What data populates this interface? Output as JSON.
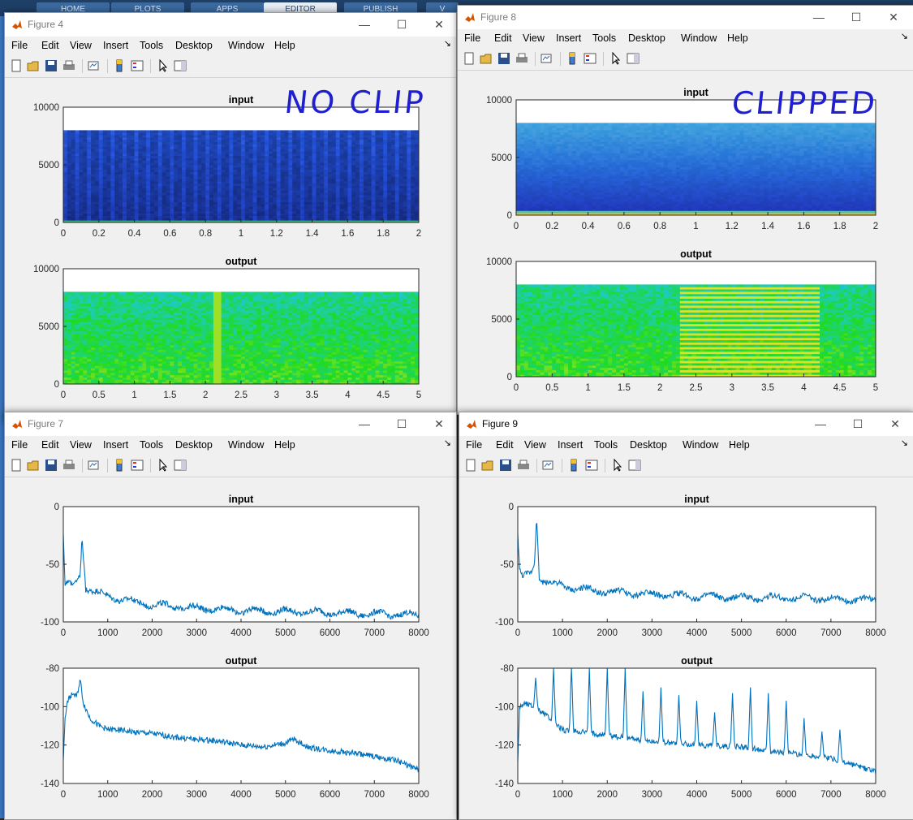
{
  "desktop": {
    "ribbon_tabs": [
      "HOME",
      "PLOTS",
      "APPS",
      "EDITOR",
      "PUBLISH",
      "V"
    ]
  },
  "menu_items": [
    "File",
    "Edit",
    "View",
    "Insert",
    "Tools",
    "Desktop",
    "Window",
    "Help"
  ],
  "windows": [
    {
      "id": "fig4",
      "title": "Figure 4",
      "active": false,
      "annotation": "NO CLIP"
    },
    {
      "id": "fig8",
      "title": "Figure 8",
      "active": false,
      "annotation": "CLIPPED"
    },
    {
      "id": "fig7",
      "title": "Figure 7",
      "active": false,
      "annotation": ""
    },
    {
      "id": "fig9",
      "title": "Figure 9",
      "active": true,
      "annotation": ""
    }
  ],
  "chart_data": [
    {
      "figure": "Figure 4",
      "subplot": "top",
      "type": "heatmap",
      "title": "input",
      "xlim": [
        0,
        2
      ],
      "ylim": [
        0,
        10000
      ],
      "xticks": [
        "0",
        "0.2",
        "0.4",
        "0.6",
        "0.8",
        "1",
        "1.2",
        "1.4",
        "1.6",
        "1.8",
        "2"
      ],
      "yticks": [
        "0",
        "5000",
        "10000"
      ],
      "data_ymax": 8000
    },
    {
      "figure": "Figure 4",
      "subplot": "bottom",
      "type": "heatmap",
      "title": "output",
      "xlim": [
        0,
        5
      ],
      "ylim": [
        0,
        10000
      ],
      "xticks": [
        "0",
        "0.5",
        "1",
        "1.5",
        "2",
        "2.5",
        "3",
        "3.5",
        "4",
        "4.5",
        "5"
      ],
      "yticks": [
        "0",
        "5000",
        "10000"
      ],
      "data_ymax": 8000
    },
    {
      "figure": "Figure 8",
      "subplot": "top",
      "type": "heatmap",
      "title": "input",
      "xlim": [
        0,
        2
      ],
      "ylim": [
        0,
        10000
      ],
      "xticks": [
        "0",
        "0.2",
        "0.4",
        "0.6",
        "0.8",
        "1",
        "1.2",
        "1.4",
        "1.6",
        "1.8",
        "2"
      ],
      "yticks": [
        "0",
        "5000",
        "10000"
      ],
      "data_ymax": 8000
    },
    {
      "figure": "Figure 8",
      "subplot": "bottom",
      "type": "heatmap",
      "title": "output",
      "xlim": [
        0,
        5
      ],
      "ylim": [
        0,
        10000
      ],
      "xticks": [
        "0",
        "0.5",
        "1",
        "1.5",
        "2",
        "2.5",
        "3",
        "3.5",
        "4",
        "4.5",
        "5"
      ],
      "yticks": [
        "0",
        "5000",
        "10000"
      ],
      "data_ymax": 8000,
      "harmonic_block_x": [
        2.25,
        4.25
      ]
    },
    {
      "figure": "Figure 7",
      "subplot": "top",
      "type": "line",
      "title": "input",
      "xlim": [
        0,
        8000
      ],
      "ylim": [
        -100,
        0
      ],
      "xticks": [
        "0",
        "1000",
        "2000",
        "3000",
        "4000",
        "5000",
        "6000",
        "7000",
        "8000"
      ],
      "yticks": [
        "0",
        "-50",
        "-100"
      ],
      "x": [
        0,
        40,
        100,
        200,
        300,
        380,
        420,
        500,
        700,
        1000,
        1500,
        2000,
        3000,
        4000,
        5000,
        6000,
        7000,
        8000
      ],
      "y": [
        -22,
        -70,
        -65,
        -67,
        -66,
        -60,
        -27,
        -70,
        -74,
        -78,
        -82,
        -85,
        -88,
        -90,
        -91,
        -92,
        -93,
        -94
      ]
    },
    {
      "figure": "Figure 7",
      "subplot": "bottom",
      "type": "line",
      "title": "output",
      "xlim": [
        0,
        8000
      ],
      "ylim": [
        -140,
        -80
      ],
      "xticks": [
        "0",
        "1000",
        "2000",
        "3000",
        "4000",
        "5000",
        "6000",
        "7000",
        "8000"
      ],
      "yticks": [
        "-80",
        "-100",
        "-120",
        "-140"
      ],
      "x": [
        0,
        40,
        100,
        200,
        300,
        380,
        450,
        600,
        800,
        1000,
        1200,
        1500,
        2000,
        2500,
        3000,
        3500,
        4000,
        4500,
        5000,
        5200,
        5500,
        6000,
        6500,
        7000,
        7500,
        8000
      ],
      "y": [
        -128,
        -105,
        -97,
        -93,
        -95,
        -86,
        -98,
        -106,
        -110,
        -112,
        -112,
        -113,
        -114,
        -116,
        -117,
        -118,
        -120,
        -121,
        -119,
        -117,
        -121,
        -123,
        -124,
        -126,
        -128,
        -133
      ]
    },
    {
      "figure": "Figure 9",
      "subplot": "top",
      "type": "line",
      "title": "input",
      "xlim": [
        0,
        8000
      ],
      "ylim": [
        -100,
        0
      ],
      "xticks": [
        "0",
        "1000",
        "2000",
        "3000",
        "4000",
        "5000",
        "6000",
        "7000",
        "8000"
      ],
      "yticks": [
        "0",
        "-50",
        "-100"
      ],
      "x": [
        0,
        40,
        100,
        200,
        300,
        370,
        420,
        480,
        700,
        1000,
        1500,
        2000,
        3000,
        4000,
        5000,
        6000,
        7000,
        8000
      ],
      "y": [
        -22,
        -55,
        -60,
        -58,
        -57,
        -50,
        -10,
        -62,
        -66,
        -69,
        -72,
        -74,
        -76,
        -78,
        -79,
        -79,
        -80,
        -81
      ]
    },
    {
      "figure": "Figure 9",
      "subplot": "bottom",
      "type": "line",
      "title": "output",
      "xlim": [
        0,
        8000
      ],
      "ylim": [
        -140,
        -80
      ],
      "xticks": [
        "0",
        "1000",
        "2000",
        "3000",
        "4000",
        "5000",
        "6000",
        "7000",
        "8000"
      ],
      "yticks": [
        "-80",
        "-100",
        "-120",
        "-140"
      ],
      "base_x": [
        0,
        40,
        150,
        400,
        1000,
        2000,
        3000,
        4000,
        5000,
        6000,
        7000,
        8000
      ],
      "base_y": [
        -128,
        -100,
        -98,
        -100,
        -112,
        -115,
        -118,
        -120,
        -121,
        -124,
        -127,
        -134
      ],
      "peaks_x": [
        400,
        800,
        1200,
        1600,
        2000,
        2400,
        2800,
        3200,
        3600,
        4000,
        4400,
        4800,
        5200,
        5600,
        6000,
        6400,
        6800,
        7200
      ],
      "peaks_y": [
        -85,
        -80,
        -78,
        -80,
        -80,
        -80,
        -92,
        -90,
        -94,
        -97,
        -103,
        -93,
        -90,
        -93,
        -97,
        -106,
        -113,
        -112
      ]
    }
  ]
}
